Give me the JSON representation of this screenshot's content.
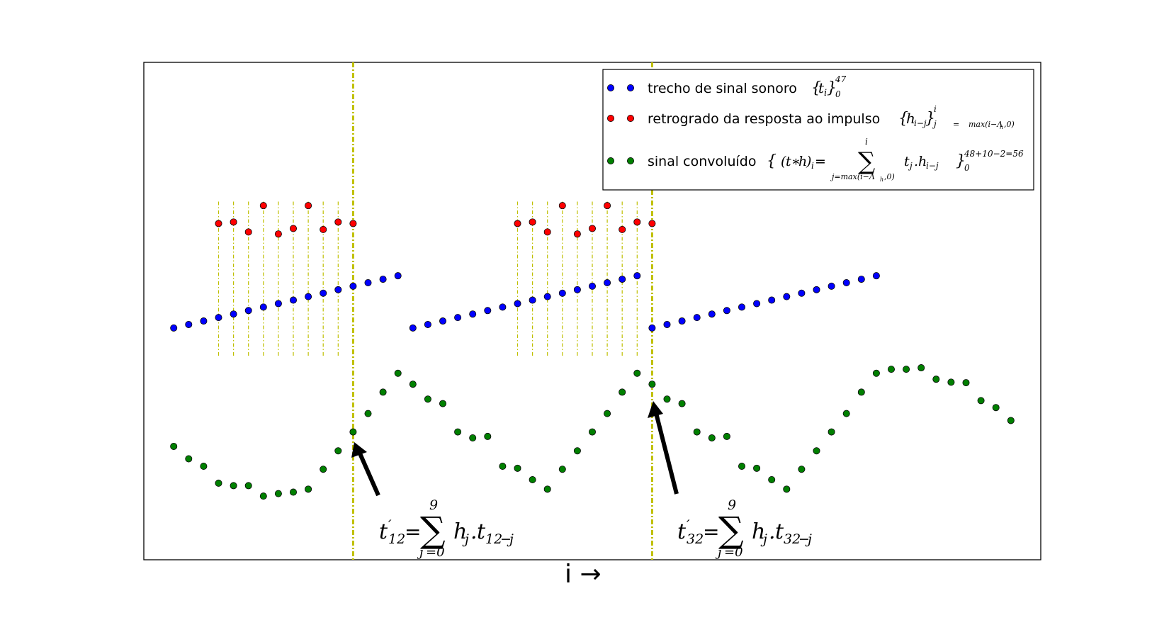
{
  "chart_data": {
    "type": "scatter",
    "xlabel": "i →",
    "ylabel": "",
    "grid": false,
    "axis_ticks": false,
    "legend_position": "top-right",
    "xlim": [
      -2,
      58
    ],
    "ylim": [
      0,
      100
    ],
    "colors": {
      "signal": "#0000ff",
      "impulse": "#ff0000",
      "conv": "#008000",
      "guides": "#bfbf00",
      "arrow": "#000000"
    },
    "legend": [
      {
        "label": "trecho de sinal sonoro",
        "math": "{tᵢ}₀⁴⁷",
        "color": "#0000ff"
      },
      {
        "label": "retrogrado da resposta ao impulso",
        "math": "{hᵢ₋ⱼ}ⱼ₌ₘₐₓ₍ᵢ₋Λₕ,₀₎ⁱ",
        "color": "#ff0000"
      },
      {
        "label": "sinal convoluído",
        "math": "{ (t∗h)ᵢ = Σⱼ₌ₘₐₓ₍ᵢ₋Λₕ,₀₎ⁱ tⱼ.hᵢ₋ⱼ }₀⁴⁸⁺¹⁰⁻²⁼⁵⁶",
        "color": "#008000"
      }
    ],
    "series": [
      {
        "name": "trecho de sinal sonoro",
        "color": "#0000ff",
        "x": [
          0,
          1,
          2,
          3,
          4,
          5,
          6,
          7,
          8,
          9,
          10,
          11,
          12,
          13,
          14,
          15,
          16,
          17,
          18,
          19,
          20,
          21,
          22,
          23,
          24,
          25,
          26,
          27,
          28,
          29,
          30,
          31,
          32,
          33,
          34,
          35,
          36,
          37,
          38,
          39,
          40,
          41,
          42,
          43,
          44,
          45,
          46,
          47
        ],
        "y": [
          46.6,
          47.3,
          48.0,
          48.7,
          49.4,
          50.1,
          50.8,
          51.5,
          52.2,
          52.9,
          53.6,
          54.3,
          55.0,
          55.7,
          56.4,
          57.1,
          46.6,
          47.3,
          48.0,
          48.7,
          49.4,
          50.1,
          50.8,
          51.5,
          52.2,
          52.9,
          53.6,
          54.3,
          55.0,
          55.7,
          56.4,
          57.1,
          46.6,
          47.3,
          48.0,
          48.7,
          49.4,
          50.1,
          50.8,
          51.5,
          52.2,
          52.9,
          53.6,
          54.3,
          55.0,
          55.7,
          56.4,
          57.1
        ]
      },
      {
        "name": "retrogrado da resposta ao impulso",
        "color": "#ff0000",
        "x": [
          3,
          4,
          5,
          6,
          7,
          8,
          9,
          10,
          11,
          12,
          23,
          24,
          25,
          26,
          27,
          28,
          29,
          30,
          31,
          32
        ],
        "y": [
          67.6,
          67.9,
          65.9,
          71.2,
          65.5,
          66.6,
          71.2,
          66.4,
          67.9,
          67.6,
          67.6,
          67.9,
          65.9,
          71.2,
          65.5,
          66.6,
          71.2,
          66.4,
          67.9,
          67.6
        ]
      },
      {
        "name": "sinal convoluído",
        "color": "#008000",
        "x": [
          0,
          1,
          2,
          3,
          4,
          5,
          6,
          7,
          8,
          9,
          10,
          11,
          12,
          13,
          14,
          15,
          16,
          17,
          18,
          19,
          20,
          21,
          22,
          23,
          24,
          25,
          26,
          27,
          28,
          29,
          30,
          31,
          32,
          33,
          34,
          35,
          36,
          37,
          38,
          39,
          40,
          41,
          42,
          43,
          44,
          45,
          46,
          47,
          48,
          49,
          50,
          51,
          52,
          53,
          54,
          55,
          56
        ],
        "y": [
          22.8,
          20.3,
          18.8,
          15.4,
          14.9,
          14.9,
          12.8,
          13.3,
          13.6,
          14.2,
          18.2,
          21.9,
          25.7,
          29.4,
          33.7,
          37.5,
          35.3,
          32.3,
          31.4,
          25.7,
          24.5,
          24.8,
          18.8,
          18.4,
          16.1,
          14.2,
          18.2,
          21.9,
          25.7,
          29.4,
          33.7,
          37.5,
          35.3,
          32.3,
          31.4,
          25.7,
          24.5,
          24.8,
          18.8,
          18.4,
          16.1,
          14.2,
          18.2,
          21.9,
          25.7,
          29.4,
          33.7,
          37.5,
          38.3,
          38.3,
          38.6,
          36.3,
          35.7,
          35.6,
          32.0,
          30.6,
          28.0
        ]
      }
    ],
    "guides": [
      {
        "x": [
          3,
          4,
          5,
          6,
          7,
          8,
          9,
          10,
          11,
          12
        ],
        "y_range": [
          41,
          72
        ],
        "style": "thin",
        "full_height_at": 12
      },
      {
        "x": [
          23,
          24,
          25,
          26,
          27,
          28,
          29,
          30,
          31,
          32
        ],
        "y_range": [
          41,
          72
        ],
        "style": "thin",
        "full_height_at": 32
      }
    ],
    "annotations": [
      {
        "text": "t′₁₂ = Σⱼ₌₀⁹ hⱼ.t₁₂₋ⱼ",
        "points_to": [
          12,
          25.7
        ]
      },
      {
        "text": "t′₃₂ = Σⱼ₌₀⁹ hⱼ.t₃₂₋ⱼ",
        "points_to": [
          32,
          35.3
        ]
      }
    ]
  }
}
